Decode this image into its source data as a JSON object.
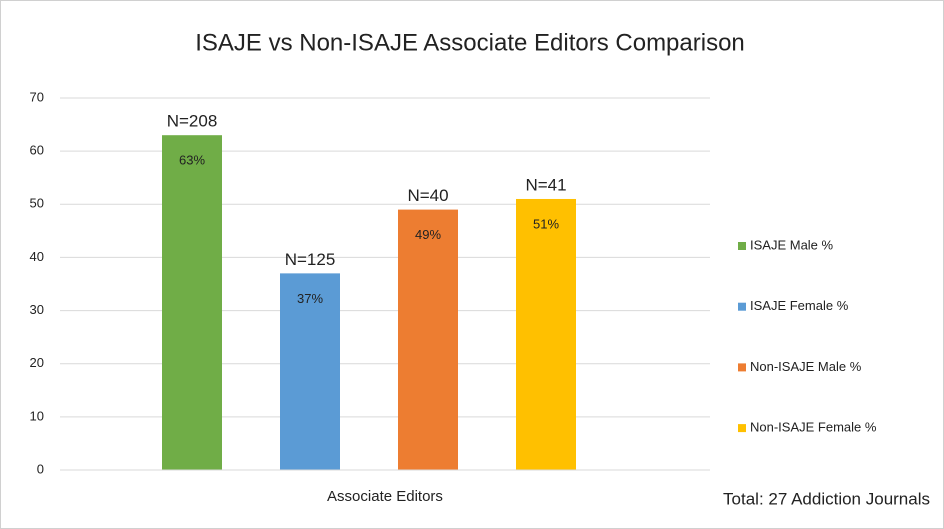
{
  "chart_data": {
    "type": "bar",
    "title": "ISAJE  vs Non-ISAJE Associate Editors Comparison",
    "categories": [
      "Associate Editors"
    ],
    "series": [
      {
        "name": "ISAJE Male %",
        "color": "#70ad47",
        "values": [
          63
        ],
        "value_labels": [
          "63%"
        ],
        "annotations": [
          "N=208"
        ]
      },
      {
        "name": "ISAJE Female %",
        "color": "#5b9bd5",
        "values": [
          37
        ],
        "value_labels": [
          "37%"
        ],
        "annotations": [
          "N=125"
        ]
      },
      {
        "name": "Non-ISAJE Male %",
        "color": "#ed7d31",
        "values": [
          49
        ],
        "value_labels": [
          "49%"
        ],
        "annotations": [
          "N=40"
        ]
      },
      {
        "name": "Non-ISAJE Female %",
        "color": "#ffc000",
        "values": [
          51
        ],
        "value_labels": [
          "51%"
        ],
        "annotations": [
          "N=41"
        ]
      }
    ],
    "ylim": [
      0,
      70
    ],
    "yticks": [
      0,
      10,
      20,
      30,
      40,
      50,
      60,
      70
    ],
    "grid": true,
    "legend": "right",
    "footnote": "Total: 27 Addiction Journals"
  }
}
